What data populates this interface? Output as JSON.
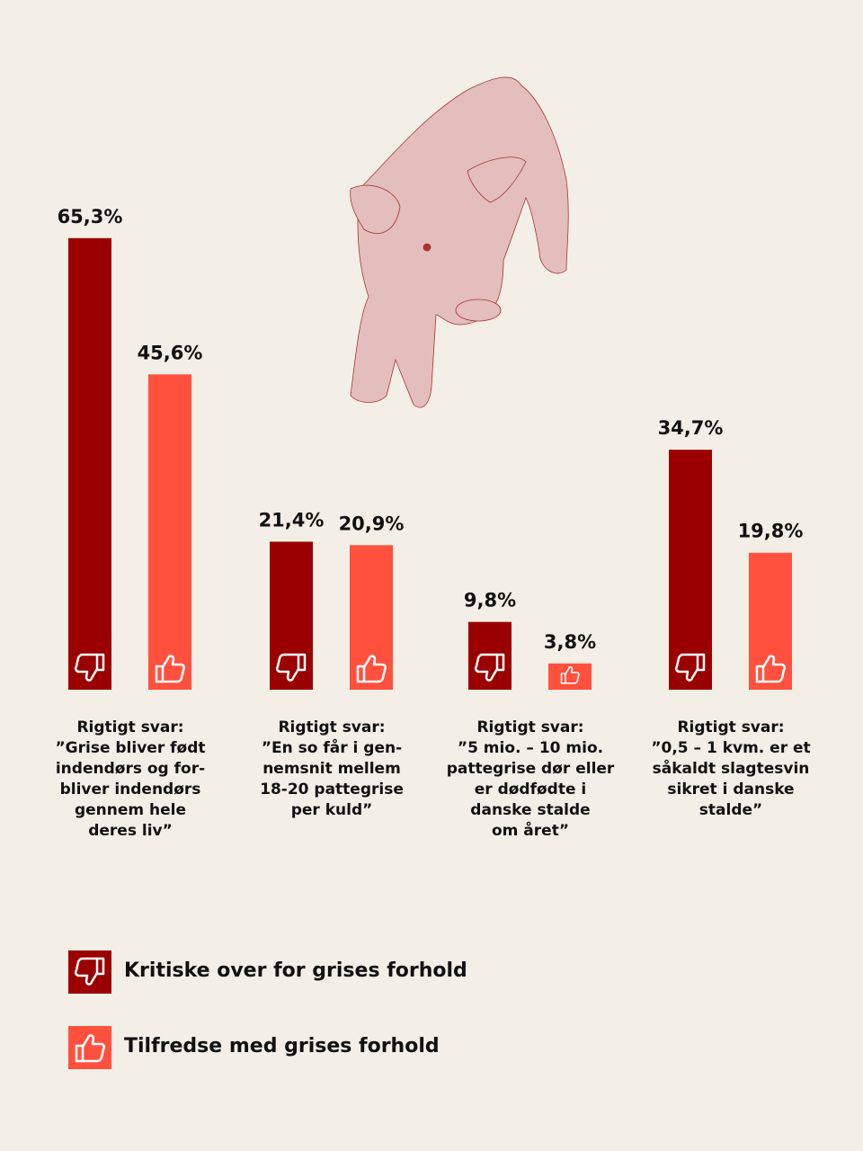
{
  "chart_data": {
    "type": "bar",
    "categories": [
      "Rigtigt svar:\n”Grise bliver født\nindendørs og for-\nbliver indendørs\ngennem hele\nderes liv”",
      "Rigtigt svar:\n”En so får i gen-\nnemsnit mellem\n18-20 pattegrise\nper kuld”",
      "Rigtigt svar:\n”5 mio. – 10 mio.\npattegrise dør eller\ner dødfødte i\ndanske stalde\nom året”",
      "Rigtigt svar:\n”0,5 – 1 kvm. er et\nsåkaldt slagtesvin\nsikret i danske\nstalde”"
    ],
    "series": [
      {
        "name": "Kritiske over for grises forhold",
        "color": "#9b0000",
        "values": [
          65.3,
          21.4,
          9.8,
          34.7
        ],
        "value_labels": [
          "65,3%",
          "21,4%",
          "9,8%",
          "34,7%"
        ]
      },
      {
        "name": "Tilfredse med grises forhold",
        "color": "#ff513d",
        "values": [
          45.6,
          20.9,
          3.8,
          19.8
        ],
        "value_labels": [
          "45,6%",
          "20,9%",
          "3,8%",
          "19,8%"
        ]
      }
    ]
  }
}
